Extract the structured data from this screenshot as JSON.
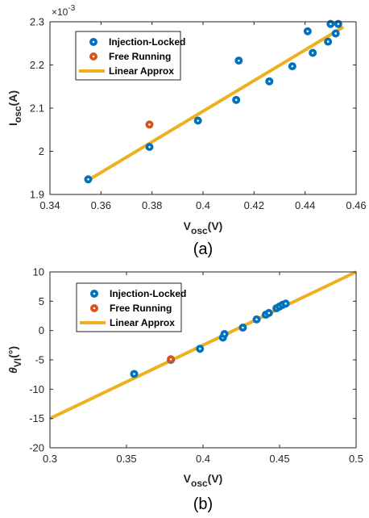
{
  "colors": {
    "injection_locked": "#0072BD",
    "free_running": "#D95319",
    "linear_approx": "#EDB120",
    "axis": "#262626"
  },
  "chart_data": [
    {
      "type": "scatter",
      "panel_label": "(a)",
      "ylabel_base": "I",
      "ylabel_sub": "osc",
      "ylabel_unit": "(A)",
      "xlabel_base": "V",
      "xlabel_sub": "osc",
      "xlabel_unit": "(V)",
      "y_exponent_base": "×10",
      "y_exponent": "-3",
      "xlim": [
        0.34,
        0.46
      ],
      "ylim": [
        1.9,
        2.3
      ],
      "x_ticks": [
        "0.34",
        "0.36",
        "0.38",
        "0.4",
        "0.42",
        "0.44",
        "0.46"
      ],
      "y_ticks": [
        "1.9",
        "2",
        "2.1",
        "2.2",
        "2.3"
      ],
      "legend_position": "top-left",
      "series": [
        {
          "name": "Injection-Locked",
          "kind": "scatter",
          "points": [
            [
              0.355,
              1.935
            ],
            [
              0.379,
              2.01
            ],
            [
              0.398,
              2.071
            ],
            [
              0.413,
              2.119
            ],
            [
              0.414,
              2.21
            ],
            [
              0.426,
              2.162
            ],
            [
              0.435,
              2.197
            ],
            [
              0.441,
              2.278
            ],
            [
              0.443,
              2.228
            ],
            [
              0.449,
              2.254
            ],
            [
              0.45,
              2.295
            ],
            [
              0.452,
              2.273
            ],
            [
              0.453,
              2.295
            ]
          ]
        },
        {
          "name": "Free Running",
          "kind": "scatter",
          "points": [
            [
              0.379,
              2.062
            ]
          ]
        },
        {
          "name": "Linear Approx",
          "kind": "line",
          "points": [
            [
              0.355,
              1.933
            ],
            [
              0.455,
              2.288
            ]
          ]
        }
      ]
    },
    {
      "type": "scatter",
      "panel_label": "(b)",
      "ylabel_base": "θ",
      "ylabel_sub": "VI",
      "ylabel_unit": "(°)",
      "xlabel_base": "V",
      "xlabel_sub": "osc",
      "xlabel_unit": "(V)",
      "xlim": [
        0.3,
        0.5
      ],
      "ylim": [
        -20,
        10
      ],
      "x_ticks": [
        "0.3",
        "0.35",
        "0.4",
        "0.45",
        "0.5"
      ],
      "y_ticks": [
        "-20",
        "-15",
        "-10",
        "-5",
        "0",
        "5",
        "10"
      ],
      "legend_position": "top-left",
      "series": [
        {
          "name": "Injection-Locked",
          "kind": "scatter",
          "points": [
            [
              0.355,
              -7.4
            ],
            [
              0.379,
              -5.0
            ],
            [
              0.398,
              -3.1
            ],
            [
              0.413,
              -1.2
            ],
            [
              0.414,
              -0.6
            ],
            [
              0.426,
              0.5
            ],
            [
              0.435,
              1.9
            ],
            [
              0.441,
              2.7
            ],
            [
              0.443,
              3.0
            ],
            [
              0.448,
              3.8
            ],
            [
              0.45,
              4.1
            ],
            [
              0.452,
              4.4
            ],
            [
              0.454,
              4.6
            ]
          ]
        },
        {
          "name": "Free Running",
          "kind": "scatter",
          "points": [
            [
              0.379,
              -4.9
            ]
          ]
        },
        {
          "name": "Linear Approx",
          "kind": "line",
          "points": [
            [
              0.3,
              -15.0
            ],
            [
              0.5,
              10.0
            ]
          ]
        }
      ]
    }
  ]
}
